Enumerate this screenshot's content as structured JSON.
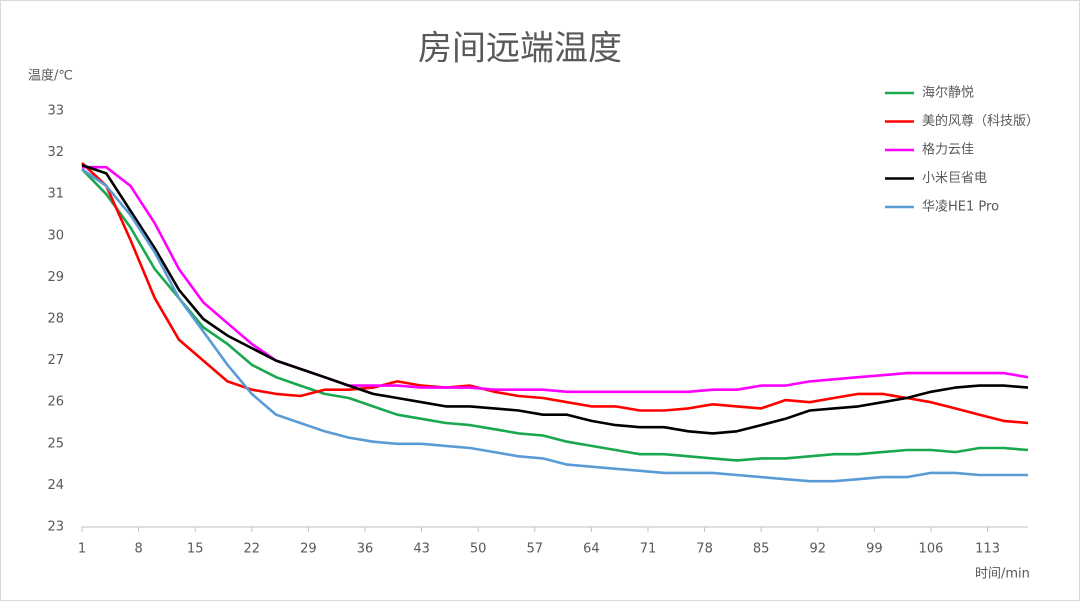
{
  "chart_data": {
    "type": "line",
    "title": "房间远端温度",
    "y_label": "温度/℃",
    "x_label": "时间/min",
    "x": [
      1,
      4,
      7,
      10,
      13,
      16,
      19,
      22,
      25,
      28,
      31,
      34,
      37,
      40,
      43,
      46,
      49,
      52,
      55,
      58,
      61,
      64,
      67,
      70,
      73,
      76,
      79,
      82,
      85,
      88,
      91,
      94,
      97,
      100,
      103,
      106,
      109,
      112,
      115,
      118
    ],
    "xlim": [
      1,
      118
    ],
    "xticks": [
      1,
      8,
      15,
      22,
      29,
      36,
      43,
      50,
      57,
      64,
      71,
      78,
      85,
      92,
      99,
      106,
      113
    ],
    "ylim": [
      23,
      33
    ],
    "yticks": [
      23,
      24,
      25,
      26,
      27,
      28,
      29,
      30,
      31,
      32,
      33
    ],
    "grid": false,
    "legend": "right",
    "series": [
      {
        "name": "海尔静悦",
        "color": "#1aa84f",
        "values": [
          31.6,
          31.0,
          30.2,
          29.2,
          28.5,
          27.8,
          27.4,
          26.9,
          26.6,
          26.4,
          26.2,
          26.1,
          25.9,
          25.7,
          25.6,
          25.5,
          25.45,
          25.35,
          25.25,
          25.2,
          25.05,
          24.95,
          24.85,
          24.75,
          24.75,
          24.7,
          24.65,
          24.6,
          24.65,
          24.65,
          24.7,
          24.75,
          24.75,
          24.8,
          24.85,
          24.85,
          24.8,
          24.9,
          24.9,
          24.85
        ]
      },
      {
        "name": "美的风尊（科技版）",
        "color": "#ff0000",
        "values": [
          31.75,
          31.2,
          29.9,
          28.5,
          27.5,
          27.0,
          26.5,
          26.3,
          26.2,
          26.15,
          26.3,
          26.3,
          26.35,
          26.5,
          26.4,
          26.35,
          26.4,
          26.25,
          26.15,
          26.1,
          26.0,
          25.9,
          25.9,
          25.8,
          25.8,
          25.85,
          25.95,
          25.9,
          25.85,
          26.05,
          26.0,
          26.1,
          26.2,
          26.2,
          26.1,
          26.0,
          25.85,
          25.7,
          25.55,
          25.5
        ]
      },
      {
        "name": "格力云佳",
        "color": "#ff00ff",
        "values": [
          31.65,
          31.65,
          31.2,
          30.3,
          29.2,
          28.4,
          27.9,
          27.4,
          27.0,
          26.8,
          26.6,
          26.4,
          26.4,
          26.4,
          26.35,
          26.35,
          26.35,
          26.3,
          26.3,
          26.3,
          26.25,
          26.25,
          26.25,
          26.25,
          26.25,
          26.25,
          26.3,
          26.3,
          26.4,
          26.4,
          26.5,
          26.55,
          26.6,
          26.65,
          26.7,
          26.7,
          26.7,
          26.7,
          26.7,
          26.6
        ]
      },
      {
        "name": "小米巨省电",
        "color": "#000000",
        "values": [
          31.7,
          31.5,
          30.6,
          29.7,
          28.7,
          28.0,
          27.6,
          27.3,
          27.0,
          26.8,
          26.6,
          26.4,
          26.2,
          26.1,
          26.0,
          25.9,
          25.9,
          25.85,
          25.8,
          25.7,
          25.7,
          25.55,
          25.45,
          25.4,
          25.4,
          25.3,
          25.25,
          25.3,
          25.45,
          25.6,
          25.8,
          25.85,
          25.9,
          26.0,
          26.1,
          26.25,
          26.35,
          26.4,
          26.4,
          26.35
        ]
      },
      {
        "name": "华凌HE1 Pro",
        "color": "#5b9bd5",
        "values": [
          31.6,
          31.2,
          30.5,
          29.6,
          28.5,
          27.7,
          26.9,
          26.2,
          25.7,
          25.5,
          25.3,
          25.15,
          25.05,
          25.0,
          25.0,
          24.95,
          24.9,
          24.8,
          24.7,
          24.65,
          24.5,
          24.45,
          24.4,
          24.35,
          24.3,
          24.3,
          24.3,
          24.25,
          24.2,
          24.15,
          24.1,
          24.1,
          24.15,
          24.2,
          24.2,
          24.3,
          24.3,
          24.25,
          24.25,
          24.25
        ]
      }
    ]
  }
}
